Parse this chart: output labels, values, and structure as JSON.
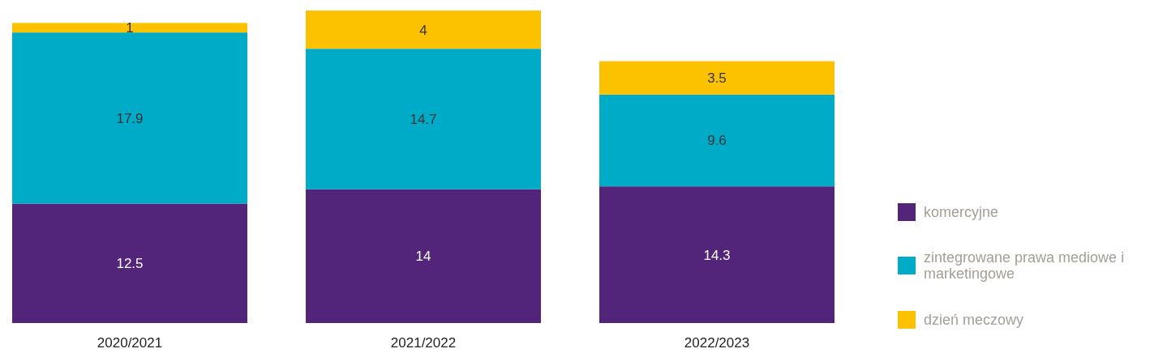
{
  "chart_data": {
    "type": "bar",
    "stacked": true,
    "data_labels": true,
    "legend": "right",
    "categories": [
      "2020/2021",
      "2021/2022",
      "2022/2023"
    ],
    "series": [
      {
        "name": "komercyjne",
        "color": "#52247a",
        "values": [
          12.5,
          14,
          14.3
        ]
      },
      {
        "name": "zintegrowane prawa mediowe i marketingowe",
        "color": "#00abc8",
        "values": [
          17.9,
          14.7,
          9.6
        ]
      },
      {
        "name": "dzień meczowy",
        "color": "#fcc200",
        "values": [
          1,
          4,
          3.5
        ]
      }
    ]
  }
}
